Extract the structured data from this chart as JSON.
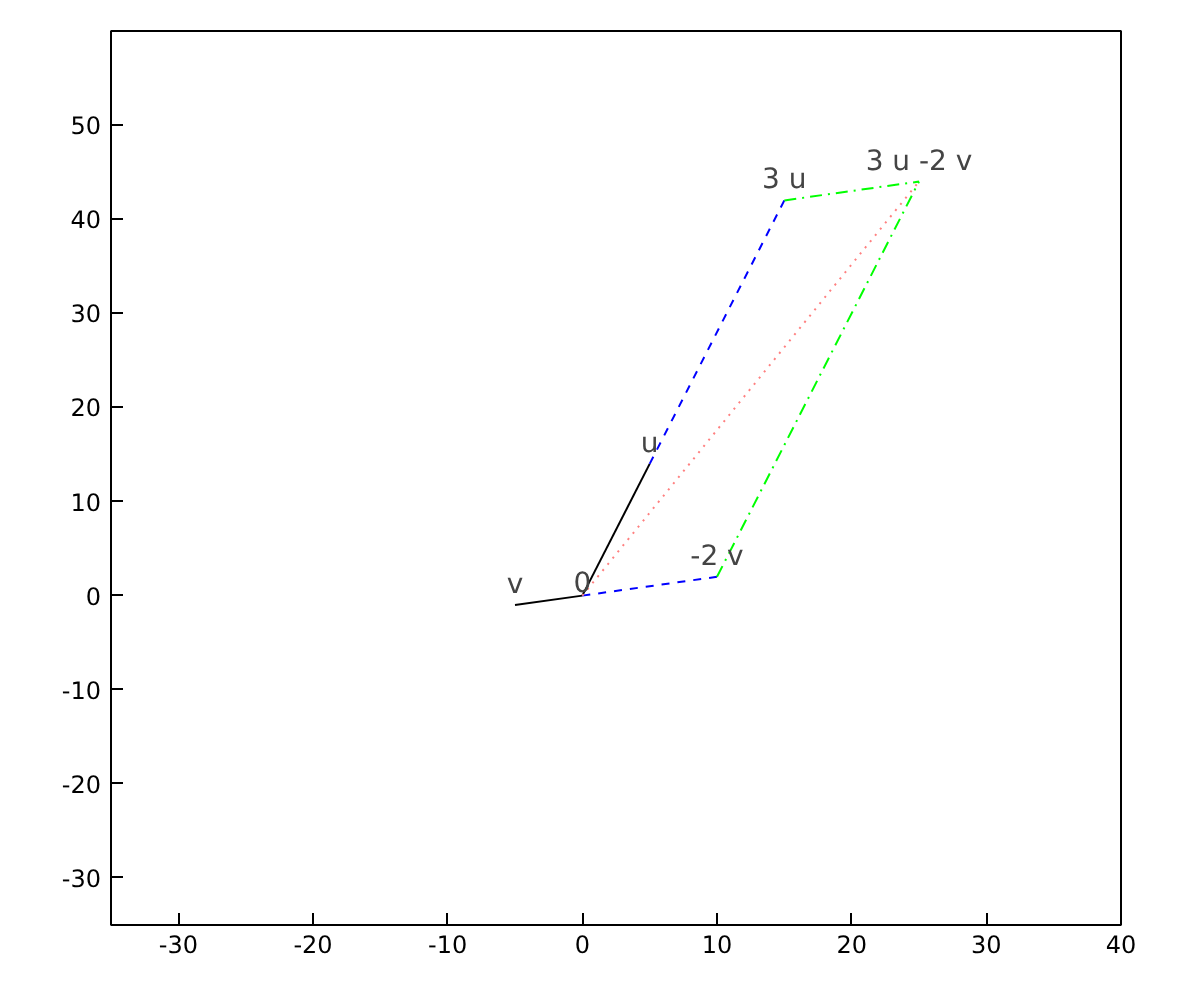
{
  "chart_data": {
    "type": "line",
    "xlim": [
      -35,
      40
    ],
    "ylim": [
      -35,
      60
    ],
    "xticks": [
      -30,
      -20,
      -10,
      0,
      10,
      20,
      30,
      40
    ],
    "yticks": [
      -30,
      -20,
      -10,
      0,
      10,
      20,
      30,
      40,
      50
    ],
    "grid": false,
    "series": [
      {
        "color": "#000000",
        "line_style": "solid",
        "x": [
          0,
          5
        ],
        "values": [
          0,
          14
        ]
      },
      {
        "color": "#000000",
        "line_style": "solid",
        "x": [
          0,
          -5
        ],
        "values": [
          0,
          -1
        ]
      },
      {
        "color": "#0000ff",
        "line_style": "dashed",
        "x": [
          5,
          15
        ],
        "values": [
          14,
          42
        ]
      },
      {
        "color": "#0000ff",
        "line_style": "dashed",
        "x": [
          0,
          10
        ],
        "values": [
          0,
          2
        ]
      },
      {
        "color": "#00ff00",
        "line_style": "dashdot",
        "x": [
          15,
          25
        ],
        "values": [
          42,
          44
        ]
      },
      {
        "color": "#00ff00",
        "line_style": "dashdot",
        "x": [
          10,
          25
        ],
        "values": [
          2,
          44
        ]
      },
      {
        "color": "#ff8080",
        "line_style": "dotted",
        "x": [
          0,
          25
        ],
        "values": [
          0,
          44
        ]
      }
    ],
    "annotations": [
      {
        "text": "u",
        "x": 5,
        "y": 14
      },
      {
        "text": "v",
        "x": -5,
        "y": -1
      },
      {
        "text": "0",
        "x": 0,
        "y": 0
      },
      {
        "text": "3 u",
        "x": 15,
        "y": 42
      },
      {
        "text": "-2 v",
        "x": 10,
        "y": 2
      },
      {
        "text": "3 u -2 v",
        "x": 25,
        "y": 44
      }
    ]
  }
}
